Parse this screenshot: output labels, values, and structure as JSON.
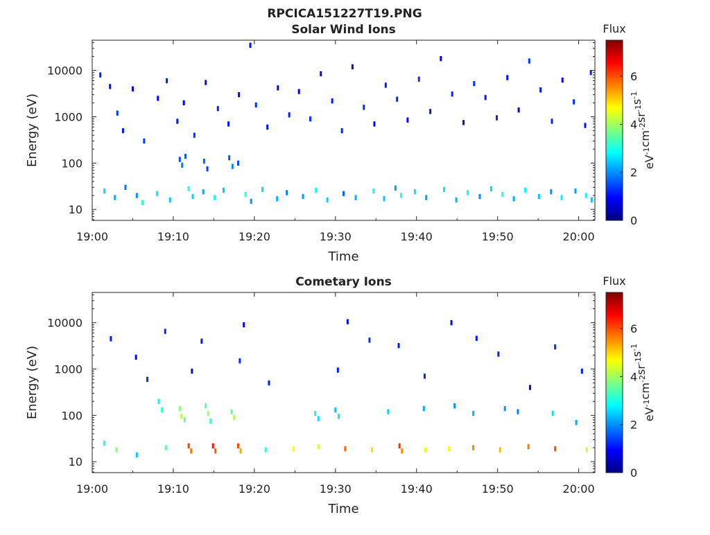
{
  "page": {
    "title": "RPCICA151227T19.PNG"
  },
  "colors": {
    "jet_stops": [
      "#00007f",
      "#0000ff",
      "#007fff",
      "#00ffff",
      "#7fff7f",
      "#ffff00",
      "#ff7f00",
      "#ff0000",
      "#7f0000"
    ]
  },
  "chart_data": [
    {
      "type": "heatmap",
      "title": "Solar Wind Ions",
      "xlabel": "Time",
      "ylabel": "Energy (eV)",
      "x_ticks": [
        "19:00",
        "19:10",
        "19:20",
        "19:30",
        "19:40",
        "19:50",
        "20:00"
      ],
      "x_range_minutes": [
        0,
        62
      ],
      "y_scale": "log",
      "y_ticks": [
        "10",
        "100",
        "1000",
        "10000"
      ],
      "y_range": [
        5.8,
        45000
      ],
      "colorbar": {
        "label_top": "Flux",
        "label_units": "eV-1cm-2sr-1s-1",
        "range": [
          0,
          7.5
        ],
        "ticks": [
          "0",
          "2",
          "4",
          "6"
        ]
      },
      "grid": false,
      "cells": [
        [
          1.0,
          8000,
          1.2
        ],
        [
          2.2,
          4500,
          1.0
        ],
        [
          3.1,
          1200,
          1.3
        ],
        [
          3.8,
          500,
          1.1
        ],
        [
          5.0,
          4000,
          0.9
        ],
        [
          6.4,
          300,
          1.4
        ],
        [
          8.1,
          2500,
          1.0
        ],
        [
          9.2,
          6000,
          1.2
        ],
        [
          10.5,
          800,
          1.1
        ],
        [
          11.3,
          2000,
          0.9
        ],
        [
          12.6,
          400,
          1.3
        ],
        [
          14.0,
          5500,
          1.0
        ],
        [
          15.5,
          1500,
          1.2
        ],
        [
          16.8,
          700,
          1.1
        ],
        [
          18.1,
          3000,
          0.8
        ],
        [
          19.5,
          35000,
          1.0
        ],
        [
          20.2,
          1800,
          1.3
        ],
        [
          21.6,
          600,
          1.1
        ],
        [
          22.9,
          4200,
          1.0
        ],
        [
          24.3,
          1100,
          1.2
        ],
        [
          25.5,
          3500,
          0.9
        ],
        [
          26.9,
          900,
          1.3
        ],
        [
          28.2,
          8500,
          1.0
        ],
        [
          29.6,
          2200,
          1.1
        ],
        [
          30.8,
          500,
          1.2
        ],
        [
          32.1,
          12000,
          1.0
        ],
        [
          33.5,
          1600,
          1.3
        ],
        [
          34.8,
          700,
          0.9
        ],
        [
          36.2,
          4800,
          1.1
        ],
        [
          37.6,
          2400,
          1.2
        ],
        [
          38.9,
          850,
          1.0
        ],
        [
          40.3,
          6500,
          1.3
        ],
        [
          41.7,
          1300,
          1.1
        ],
        [
          43.0,
          18000,
          0.9
        ],
        [
          44.4,
          3100,
          1.2
        ],
        [
          45.8,
          750,
          1.0
        ],
        [
          47.1,
          5200,
          1.3
        ],
        [
          48.5,
          2600,
          1.1
        ],
        [
          49.9,
          950,
          1.2
        ],
        [
          51.2,
          7000,
          1.0
        ],
        [
          52.6,
          1400,
          0.9
        ],
        [
          53.9,
          16000,
          1.3
        ],
        [
          55.3,
          3800,
          1.1
        ],
        [
          56.7,
          800,
          1.2
        ],
        [
          58.0,
          6200,
          1.0
        ],
        [
          59.4,
          2100,
          1.3
        ],
        [
          60.8,
          650,
          1.1
        ],
        [
          61.5,
          9000,
          1.2
        ],
        [
          10.8,
          120,
          1.5
        ],
        [
          11.1,
          90,
          1.8
        ],
        [
          11.5,
          140,
          1.6
        ],
        [
          13.8,
          110,
          1.7
        ],
        [
          14.2,
          75,
          1.4
        ],
        [
          16.9,
          130,
          1.6
        ],
        [
          17.3,
          85,
          1.9
        ],
        [
          18.0,
          100,
          1.5
        ],
        [
          1.5,
          25,
          2.6
        ],
        [
          2.8,
          18,
          2.2
        ],
        [
          4.1,
          30,
          1.8
        ],
        [
          5.5,
          20,
          2.0
        ],
        [
          6.2,
          14,
          3.1
        ],
        [
          8.0,
          22,
          2.7
        ],
        [
          9.6,
          16,
          2.4
        ],
        [
          11.9,
          28,
          3.0
        ],
        [
          12.4,
          19,
          2.5
        ],
        [
          13.7,
          24,
          2.2
        ],
        [
          15.1,
          18,
          2.9
        ],
        [
          16.2,
          26,
          2.4
        ],
        [
          18.9,
          21,
          3.2
        ],
        [
          19.6,
          15,
          2.0
        ],
        [
          21.0,
          27,
          2.6
        ],
        [
          22.8,
          17,
          2.3
        ],
        [
          24.0,
          23,
          1.9
        ],
        [
          26.0,
          19,
          2.1
        ],
        [
          27.6,
          26,
          2.8
        ],
        [
          29.0,
          16,
          2.5
        ],
        [
          31.0,
          22,
          1.7
        ],
        [
          32.5,
          18,
          2.2
        ],
        [
          34.7,
          25,
          2.9
        ],
        [
          36.0,
          17,
          2.4
        ],
        [
          37.4,
          29,
          2.1
        ],
        [
          38.1,
          20,
          3.0
        ],
        [
          39.8,
          24,
          2.6
        ],
        [
          41.2,
          18,
          2.1
        ],
        [
          43.4,
          27,
          2.7
        ],
        [
          44.9,
          16,
          2.3
        ],
        [
          46.3,
          23,
          2.9
        ],
        [
          47.8,
          19,
          2.0
        ],
        [
          49.2,
          28,
          2.5
        ],
        [
          50.6,
          21,
          3.1
        ],
        [
          52.0,
          17,
          2.2
        ],
        [
          53.4,
          26,
          2.8
        ],
        [
          55.1,
          19,
          2.4
        ],
        [
          56.6,
          24,
          2.0
        ],
        [
          57.9,
          18,
          2.7
        ],
        [
          59.6,
          25,
          2.1
        ],
        [
          60.9,
          20,
          2.8
        ],
        [
          61.6,
          16,
          2.4
        ]
      ]
    },
    {
      "type": "heatmap",
      "title": "Cometary Ions",
      "xlabel": "Time",
      "ylabel": "Energy (eV)",
      "x_ticks": [
        "19:00",
        "19:10",
        "19:20",
        "19:30",
        "19:40",
        "19:50",
        "20:00"
      ],
      "x_range_minutes": [
        0,
        62
      ],
      "y_scale": "log",
      "y_ticks": [
        "10",
        "100",
        "1000",
        "10000"
      ],
      "y_range": [
        5.8,
        45000
      ],
      "colorbar": {
        "label_top": "Flux",
        "label_units": "eV-1cm-2sr-1s-1",
        "range": [
          0,
          7.5
        ],
        "ticks": [
          "0",
          "2",
          "4",
          "6"
        ]
      },
      "grid": false,
      "cells": [
        [
          2.3,
          4500,
          1.1
        ],
        [
          5.4,
          1800,
          1.0
        ],
        [
          6.8,
          600,
          1.3
        ],
        [
          9.0,
          6500,
          1.2
        ],
        [
          12.3,
          900,
          1.0
        ],
        [
          13.5,
          4000,
          1.1
        ],
        [
          18.2,
          1500,
          1.3
        ],
        [
          18.7,
          9000,
          1.0
        ],
        [
          21.8,
          500,
          1.2
        ],
        [
          30.3,
          950,
          1.1
        ],
        [
          31.5,
          10500,
          1.0
        ],
        [
          34.2,
          4200,
          1.3
        ],
        [
          37.8,
          3200,
          1.1
        ],
        [
          41.0,
          700,
          1.2
        ],
        [
          44.3,
          10000,
          1.0
        ],
        [
          47.4,
          4600,
          1.1
        ],
        [
          50.1,
          2100,
          1.2
        ],
        [
          54.0,
          400,
          1.0
        ],
        [
          57.1,
          3000,
          1.3
        ],
        [
          60.4,
          900,
          1.1
        ],
        [
          8.2,
          200,
          2.8
        ],
        [
          8.6,
          130,
          3.2
        ],
        [
          10.8,
          140,
          3.8
        ],
        [
          11.0,
          95,
          4.2
        ],
        [
          11.4,
          80,
          3.6
        ],
        [
          14.0,
          160,
          3.5
        ],
        [
          14.3,
          110,
          4.0
        ],
        [
          14.6,
          75,
          3.2
        ],
        [
          17.2,
          120,
          3.6
        ],
        [
          17.5,
          90,
          4.1
        ],
        [
          27.5,
          110,
          2.9
        ],
        [
          27.9,
          85,
          2.6
        ],
        [
          30.0,
          130,
          2.4
        ],
        [
          30.4,
          95,
          2.7
        ],
        [
          36.5,
          120,
          2.5
        ],
        [
          40.9,
          140,
          2.2
        ],
        [
          44.7,
          160,
          2.0
        ],
        [
          47.0,
          110,
          2.3
        ],
        [
          50.9,
          140,
          2.1
        ],
        [
          52.5,
          120,
          1.9
        ],
        [
          56.8,
          110,
          2.6
        ],
        [
          59.7,
          70,
          2.2
        ],
        [
          1.5,
          25,
          3.0
        ],
        [
          3.0,
          18,
          3.8
        ],
        [
          5.5,
          14,
          2.4
        ],
        [
          9.1,
          20,
          3.5
        ],
        [
          11.9,
          22,
          6.1
        ],
        [
          12.2,
          17,
          5.7
        ],
        [
          14.9,
          22,
          6.4
        ],
        [
          15.2,
          17,
          5.9
        ],
        [
          18.0,
          22,
          6.0
        ],
        [
          18.3,
          17,
          5.3
        ],
        [
          21.4,
          18,
          3.1
        ],
        [
          24.8,
          19,
          4.6
        ],
        [
          27.9,
          21,
          4.4
        ],
        [
          31.2,
          19,
          5.8
        ],
        [
          34.5,
          18,
          4.9
        ],
        [
          37.9,
          22,
          6.2
        ],
        [
          38.2,
          17,
          5.5
        ],
        [
          41.1,
          18,
          4.5
        ],
        [
          44.0,
          19,
          4.7
        ],
        [
          47.0,
          20,
          5.6
        ],
        [
          50.3,
          18,
          5.2
        ],
        [
          53.8,
          21,
          5.7
        ],
        [
          57.1,
          19,
          6.0
        ],
        [
          61.0,
          18,
          4.3
        ]
      ]
    }
  ]
}
